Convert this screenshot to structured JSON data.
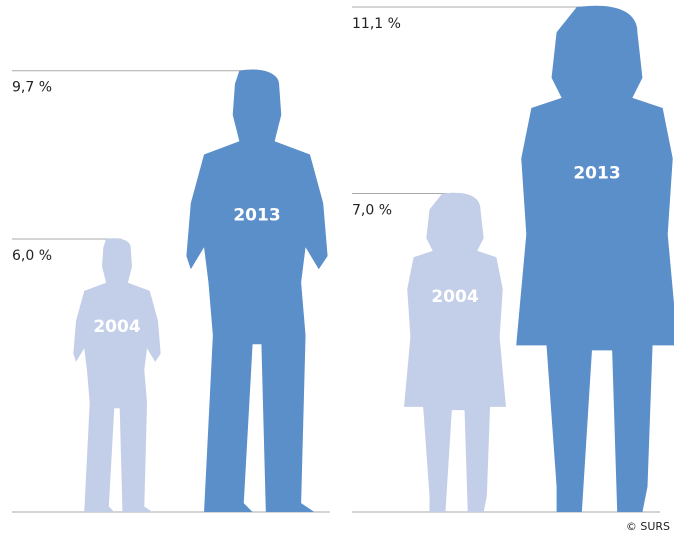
{
  "chart_data": [
    {
      "type": "pictogram",
      "categories": [
        "2004",
        "2013"
      ],
      "values": [
        6.0,
        9.7
      ],
      "value_labels": [
        "6,0 %",
        "9,7 %"
      ],
      "colors": [
        "#c3cee8",
        "#5b8fca"
      ]
    },
    {
      "type": "pictogram",
      "categories": [
        "2004",
        "2013"
      ],
      "values": [
        7.0,
        11.1
      ],
      "value_labels": [
        "7,0 %",
        "11,1 %"
      ],
      "colors": [
        "#c3cee8",
        "#5b8fca"
      ]
    }
  ],
  "source": "© SURS"
}
